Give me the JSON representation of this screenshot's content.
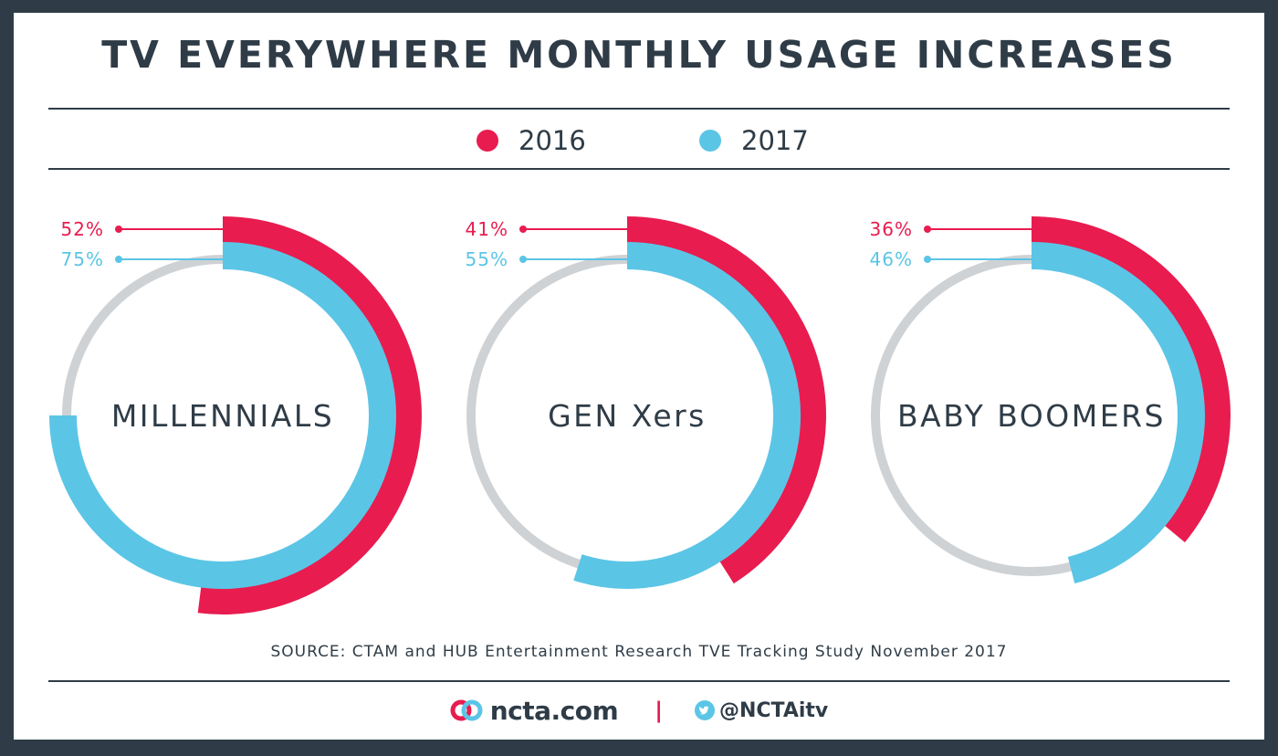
{
  "header": {
    "title": "TV EVERYWHERE MONTHLY USAGE INCREASES"
  },
  "legend": [
    {
      "label": "2016",
      "color": "#e81c4f"
    },
    {
      "label": "2017",
      "color": "#5bc5e6"
    }
  ],
  "chart_data": {
    "type": "radial-bar",
    "series": [
      {
        "name": "2016",
        "color": "#e81c4f"
      },
      {
        "name": "2017",
        "color": "#5bc5e6"
      }
    ],
    "groups": [
      {
        "name": "MILLENNIALS",
        "values": [
          52,
          75
        ],
        "labels": [
          "52%",
          "75%"
        ]
      },
      {
        "name": "GEN Xers",
        "values": [
          41,
          55
        ],
        "labels": [
          "41%",
          "55%"
        ]
      },
      {
        "name": "BABY BOOMERS",
        "values": [
          36,
          46
        ],
        "labels": [
          "36%",
          "46%"
        ]
      }
    ],
    "unit": "%",
    "range": [
      0,
      100
    ],
    "track_color": "#cfd2d5"
  },
  "source": "SOURCE: CTAM and HUB Entertainment Research TVE Tracking Study November 2017",
  "footer": {
    "site": "ncta.com",
    "separator": "|",
    "handle": "@NCTAitv"
  },
  "colors": {
    "background": "#2f3c47",
    "text": "#2f3c47"
  }
}
